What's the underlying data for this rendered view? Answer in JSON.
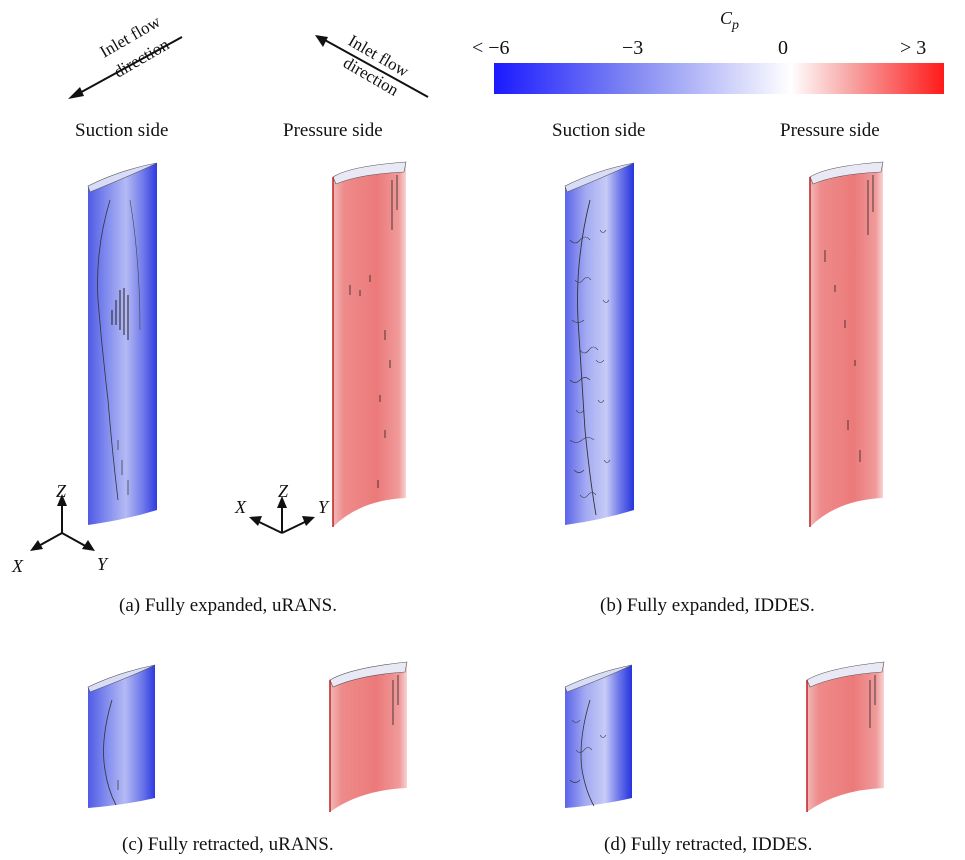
{
  "colorbar": {
    "title": "C",
    "title_sub": "p",
    "ticks": [
      "< −6",
      "−3",
      "0",
      "> 3"
    ],
    "colors": {
      "low": "#1a1aff",
      "mid": "#ffffff",
      "high": "#ff1a1a"
    }
  },
  "flow_labels": {
    "left": {
      "line1": "Inlet flow",
      "line2": "direction"
    },
    "right": {
      "line1": "Inlet flow",
      "line2": "direction"
    }
  },
  "side_labels": {
    "a_suction": "Suction side",
    "a_pressure": "Pressure side",
    "b_suction": "Suction side",
    "b_pressure": "Pressure side"
  },
  "axes_left": {
    "z": "Z",
    "x": "X",
    "y": "Y"
  },
  "axes_right": {
    "z": "Z",
    "x": "X",
    "y": "Y"
  },
  "captions": {
    "a": "(a) Fully expanded, uRANS.",
    "b": "(b) Fully expanded, IDDES.",
    "c": "(c) Fully retracted, uRANS.",
    "d": "(d) Fully retracted, IDDES."
  }
}
